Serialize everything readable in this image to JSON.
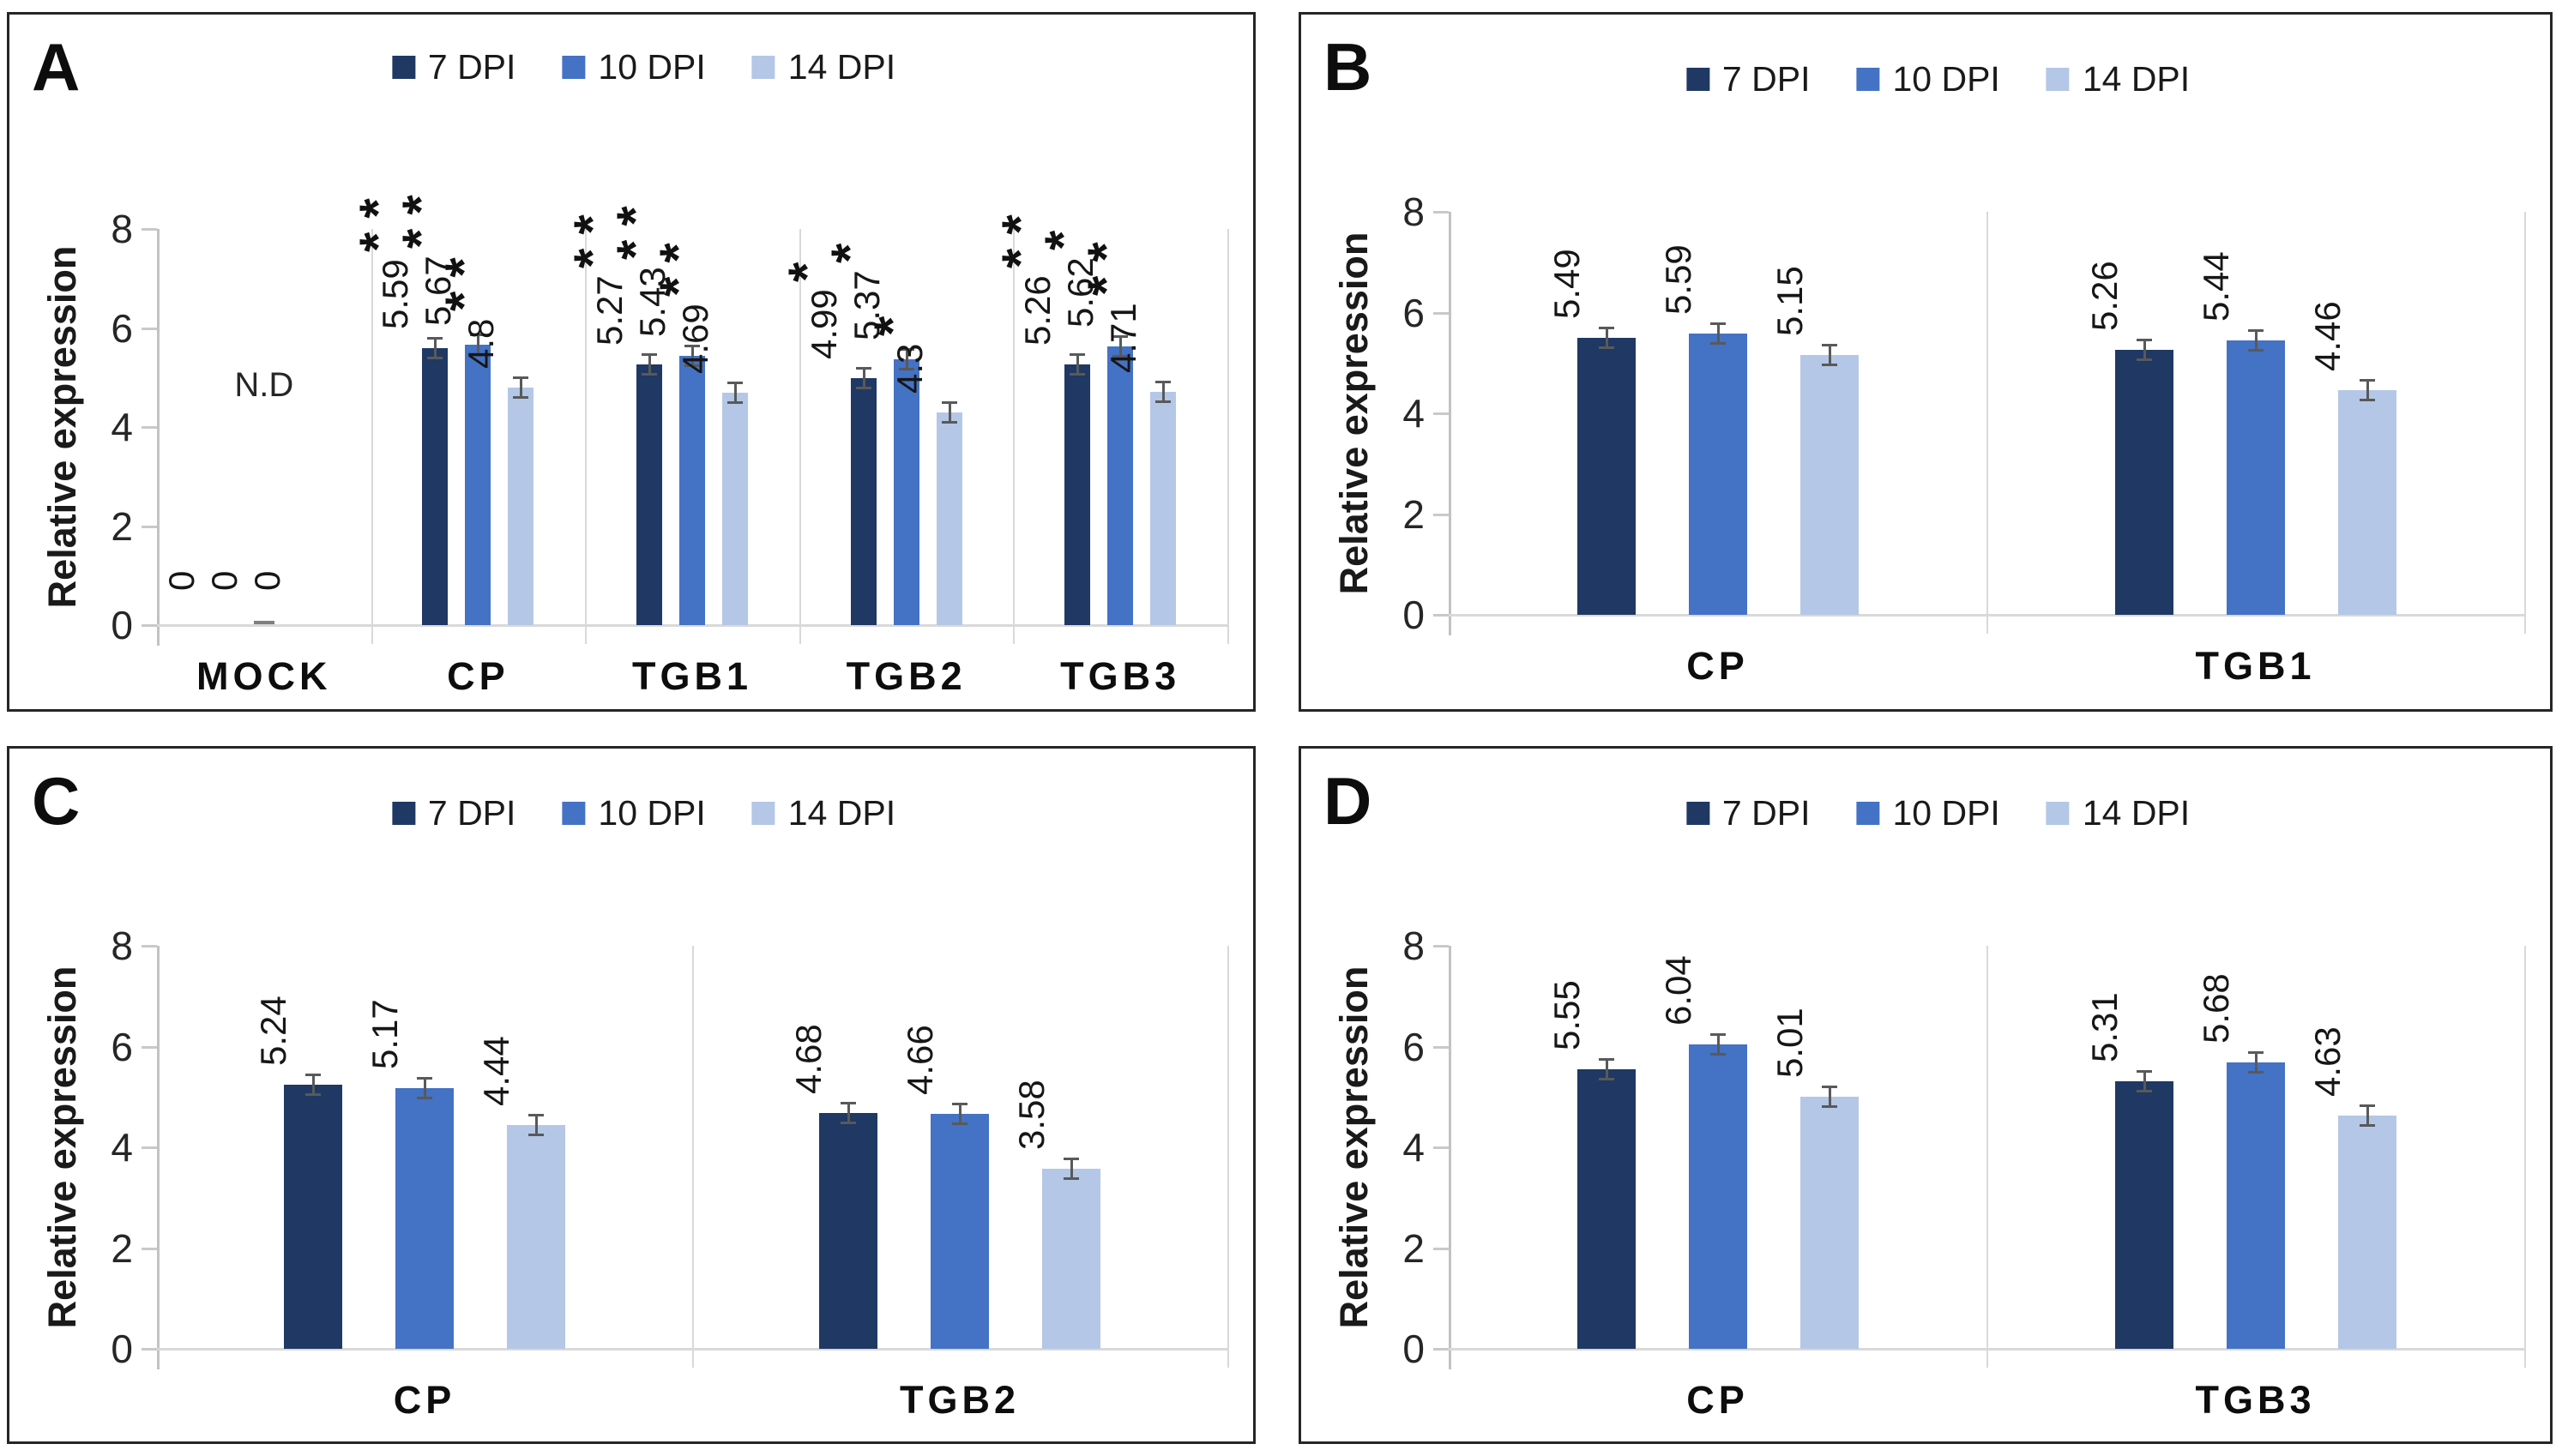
{
  "series_colors": [
    "#1f3864",
    "#4472c4",
    "#b4c7e7"
  ],
  "error_bar_color": "#595959",
  "chart_data": [
    {
      "type": "bar",
      "panel": "A",
      "title": "",
      "ylabel": "Relative expression",
      "yticks": [
        0,
        2,
        4,
        6,
        8
      ],
      "ylim": [
        0,
        8
      ],
      "grid": false,
      "legend_position": "top",
      "categories": [
        "MOCK",
        "CP",
        "TGB1",
        "TGB2",
        "TGB3"
      ],
      "series": [
        {
          "name": "7 DPI",
          "values": [
            0,
            5.59,
            5.27,
            4.99,
            5.26
          ],
          "value_labels": [
            "0",
            "5.59",
            "5.27",
            "4.99",
            "5.26"
          ],
          "stars": [
            "",
            "**",
            "**",
            "*",
            "**"
          ]
        },
        {
          "name": "10 DPI",
          "values": [
            0,
            5.67,
            5.43,
            5.37,
            5.62
          ],
          "value_labels": [
            "0",
            "5.67",
            "5.43",
            "5.37",
            "5.62"
          ],
          "stars": [
            "",
            "**",
            "**",
            "*",
            "*"
          ]
        },
        {
          "name": "14 DPI",
          "values": [
            0,
            4.8,
            4.69,
            4.3,
            4.71
          ],
          "value_labels": [
            "0",
            "4.8",
            "4.69",
            "4.3",
            "4.71"
          ],
          "stars": [
            "",
            "**",
            "**",
            "*",
            "**"
          ]
        }
      ],
      "annotations": [
        {
          "text": "N.D",
          "category": "MOCK"
        }
      ]
    },
    {
      "type": "bar",
      "panel": "B",
      "title": "",
      "ylabel": "Relative expression",
      "yticks": [
        0,
        2,
        4,
        6,
        8
      ],
      "ylim": [
        0,
        8
      ],
      "grid": false,
      "legend_position": "top",
      "categories": [
        "CP",
        "TGB1"
      ],
      "series": [
        {
          "name": "7 DPI",
          "values": [
            5.49,
            5.26
          ],
          "value_labels": [
            "5.49",
            "5.26"
          ],
          "stars": [
            "",
            ""
          ]
        },
        {
          "name": "10 DPI",
          "values": [
            5.59,
            5.44
          ],
          "value_labels": [
            "5.59",
            "5.44"
          ],
          "stars": [
            "",
            ""
          ]
        },
        {
          "name": "14 DPI",
          "values": [
            5.15,
            4.46
          ],
          "value_labels": [
            "5.15",
            "4.46"
          ],
          "stars": [
            "",
            ""
          ]
        }
      ],
      "annotations": []
    },
    {
      "type": "bar",
      "panel": "C",
      "title": "",
      "ylabel": "Relative expression",
      "yticks": [
        0,
        2,
        4,
        6,
        8
      ],
      "ylim": [
        0,
        8
      ],
      "grid": false,
      "legend_position": "top",
      "categories": [
        "CP",
        "TGB2"
      ],
      "series": [
        {
          "name": "7 DPI",
          "values": [
            5.24,
            4.68
          ],
          "value_labels": [
            "5.24",
            "4.68"
          ],
          "stars": [
            "",
            ""
          ]
        },
        {
          "name": "10 DPI",
          "values": [
            5.17,
            4.66
          ],
          "value_labels": [
            "5.17",
            "4.66"
          ],
          "stars": [
            "",
            ""
          ]
        },
        {
          "name": "14 DPI",
          "values": [
            4.44,
            3.58
          ],
          "value_labels": [
            "4.44",
            "3.58"
          ],
          "stars": [
            "",
            ""
          ]
        }
      ],
      "annotations": []
    },
    {
      "type": "bar",
      "panel": "D",
      "title": "",
      "ylabel": "Relative expression",
      "yticks": [
        0,
        2,
        4,
        6,
        8
      ],
      "ylim": [
        0,
        8
      ],
      "grid": false,
      "legend_position": "top",
      "categories": [
        "CP",
        "TGB3"
      ],
      "series": [
        {
          "name": "7 DPI",
          "values": [
            5.55,
            5.31
          ],
          "value_labels": [
            "5.55",
            "5.31"
          ],
          "stars": [
            "",
            ""
          ]
        },
        {
          "name": "10 DPI",
          "values": [
            6.04,
            5.68
          ],
          "value_labels": [
            "6.04",
            "5.68"
          ],
          "stars": [
            "",
            ""
          ]
        },
        {
          "name": "14 DPI",
          "values": [
            5.01,
            4.63
          ],
          "value_labels": [
            "5.01",
            "4.63"
          ],
          "stars": [
            "",
            ""
          ]
        }
      ],
      "annotations": []
    }
  ]
}
